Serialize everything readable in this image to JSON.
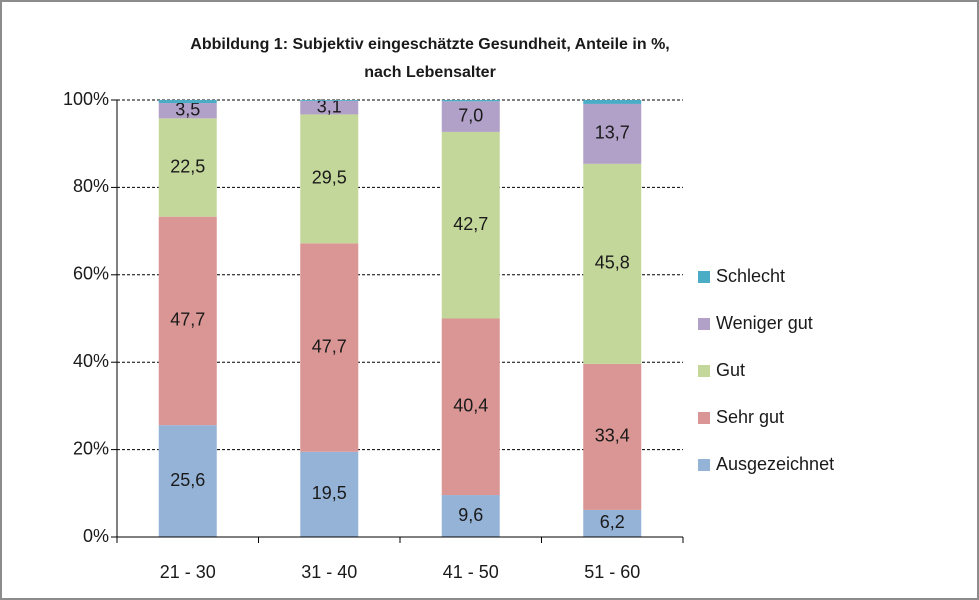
{
  "chart_data": {
    "type": "stacked_bar",
    "title": [
      "Abbildung 1: Subjektiv eingeschätzte Gesundheit, Anteile in %,",
      "nach Lebensalter"
    ],
    "categories": [
      "21 - 30",
      "31 - 40",
      "41 - 50",
      "51 - 60"
    ],
    "series": [
      {
        "name": "Ausgezeichnet",
        "color": "#95b3d7",
        "values": [
          25.6,
          19.5,
          9.6,
          6.2
        ],
        "value_labels": [
          "25,6",
          "19,5",
          "9,6",
          "6,2"
        ]
      },
      {
        "name": "Sehr gut",
        "color": "#da9694",
        "values": [
          47.7,
          47.7,
          40.4,
          33.4
        ],
        "value_labels": [
          "47,7",
          "47,7",
          "40,4",
          "33,4"
        ]
      },
      {
        "name": "Gut",
        "color": "#c4d79b",
        "values": [
          22.5,
          29.5,
          42.7,
          45.8
        ],
        "value_labels": [
          "22,5",
          "29,5",
          "42,7",
          "45,8"
        ]
      },
      {
        "name": "Weniger gut",
        "color": "#b1a0c7",
        "values": [
          3.5,
          3.1,
          7.0,
          13.7
        ],
        "value_labels": [
          "3,5",
          "3,1",
          "7,0",
          "13,7"
        ]
      },
      {
        "name": "Schlecht",
        "color": "#4bacc6",
        "values": [
          0.7,
          0.2,
          0.3,
          0.9
        ]
      }
    ],
    "ylim": [
      0,
      100
    ],
    "yticks": [
      {
        "value": 0,
        "label": "0%"
      },
      {
        "value": 20,
        "label": "20%"
      },
      {
        "value": 40,
        "label": "40%"
      },
      {
        "value": 60,
        "label": "60%"
      },
      {
        "value": 80,
        "label": "80%"
      },
      {
        "value": 100,
        "label": "100%"
      }
    ],
    "grid": true,
    "legend": "right"
  }
}
